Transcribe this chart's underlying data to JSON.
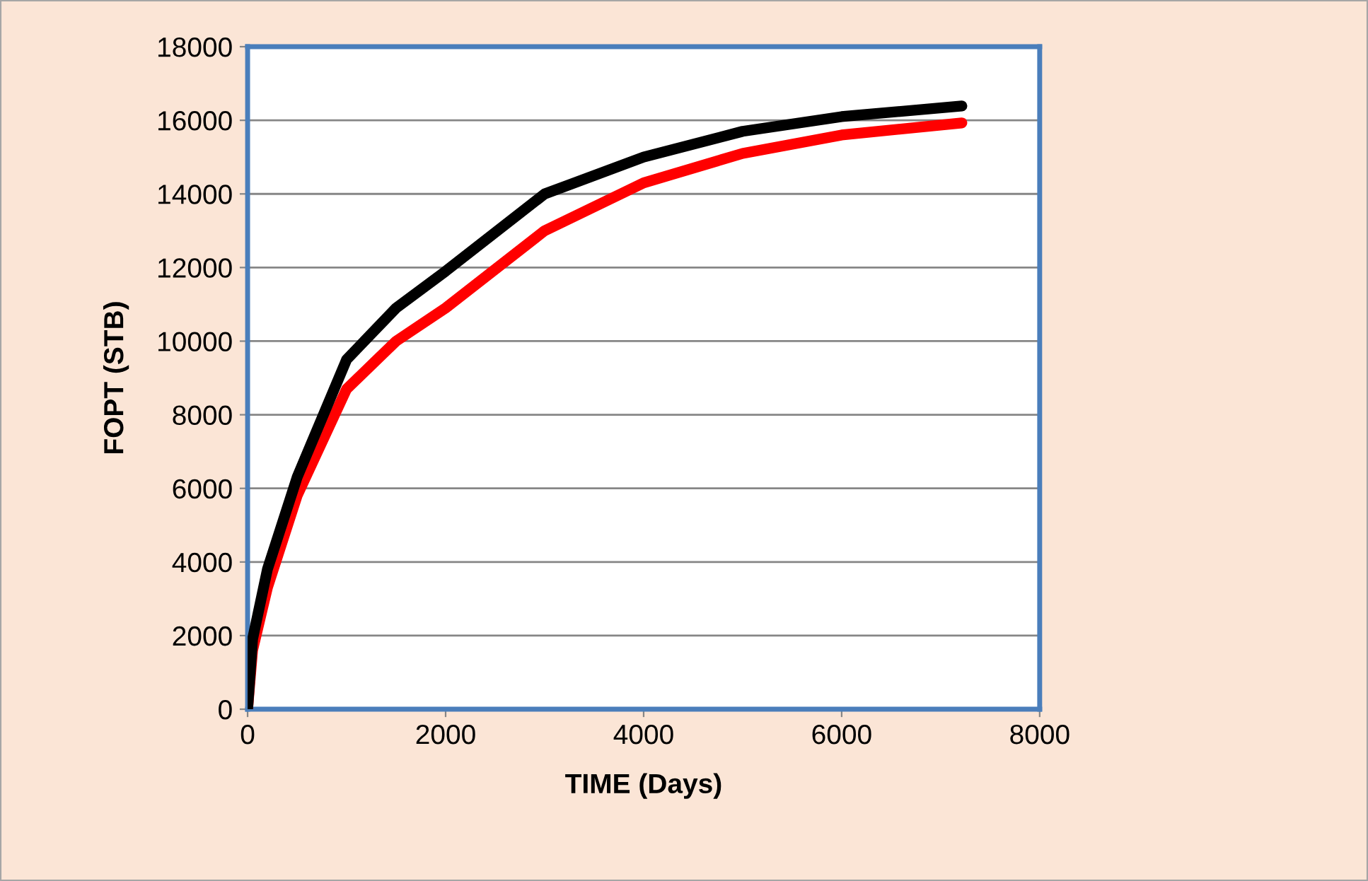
{
  "chart_data": {
    "type": "line",
    "xlabel": "TIME (Days)",
    "ylabel": "FOPT (STB)",
    "xlim": [
      0,
      8000
    ],
    "xticks": [
      0,
      2000,
      4000,
      6000,
      8000
    ],
    "ylim": [
      0,
      18000
    ],
    "yticks": [
      0,
      2000,
      4000,
      6000,
      8000,
      10000,
      12000,
      14000,
      16000,
      18000
    ],
    "grid": "y",
    "marker": "none",
    "line_style": "solid",
    "x": [
      0,
      50,
      200,
      500,
      1000,
      1500,
      2000,
      3000,
      4000,
      5000,
      6000,
      7214
    ],
    "series": [
      {
        "color": "#ff0000",
        "values": [
          0,
          1600,
          3300,
          5800,
          8700,
          10000,
          10900,
          13000,
          14300,
          15100,
          15600,
          15930
        ]
      },
      {
        "color": "#000000",
        "values": [
          0,
          1900,
          3800,
          6300,
          9500,
          10900,
          11900,
          14000,
          15000,
          15700,
          16100,
          16390
        ]
      }
    ]
  }
}
